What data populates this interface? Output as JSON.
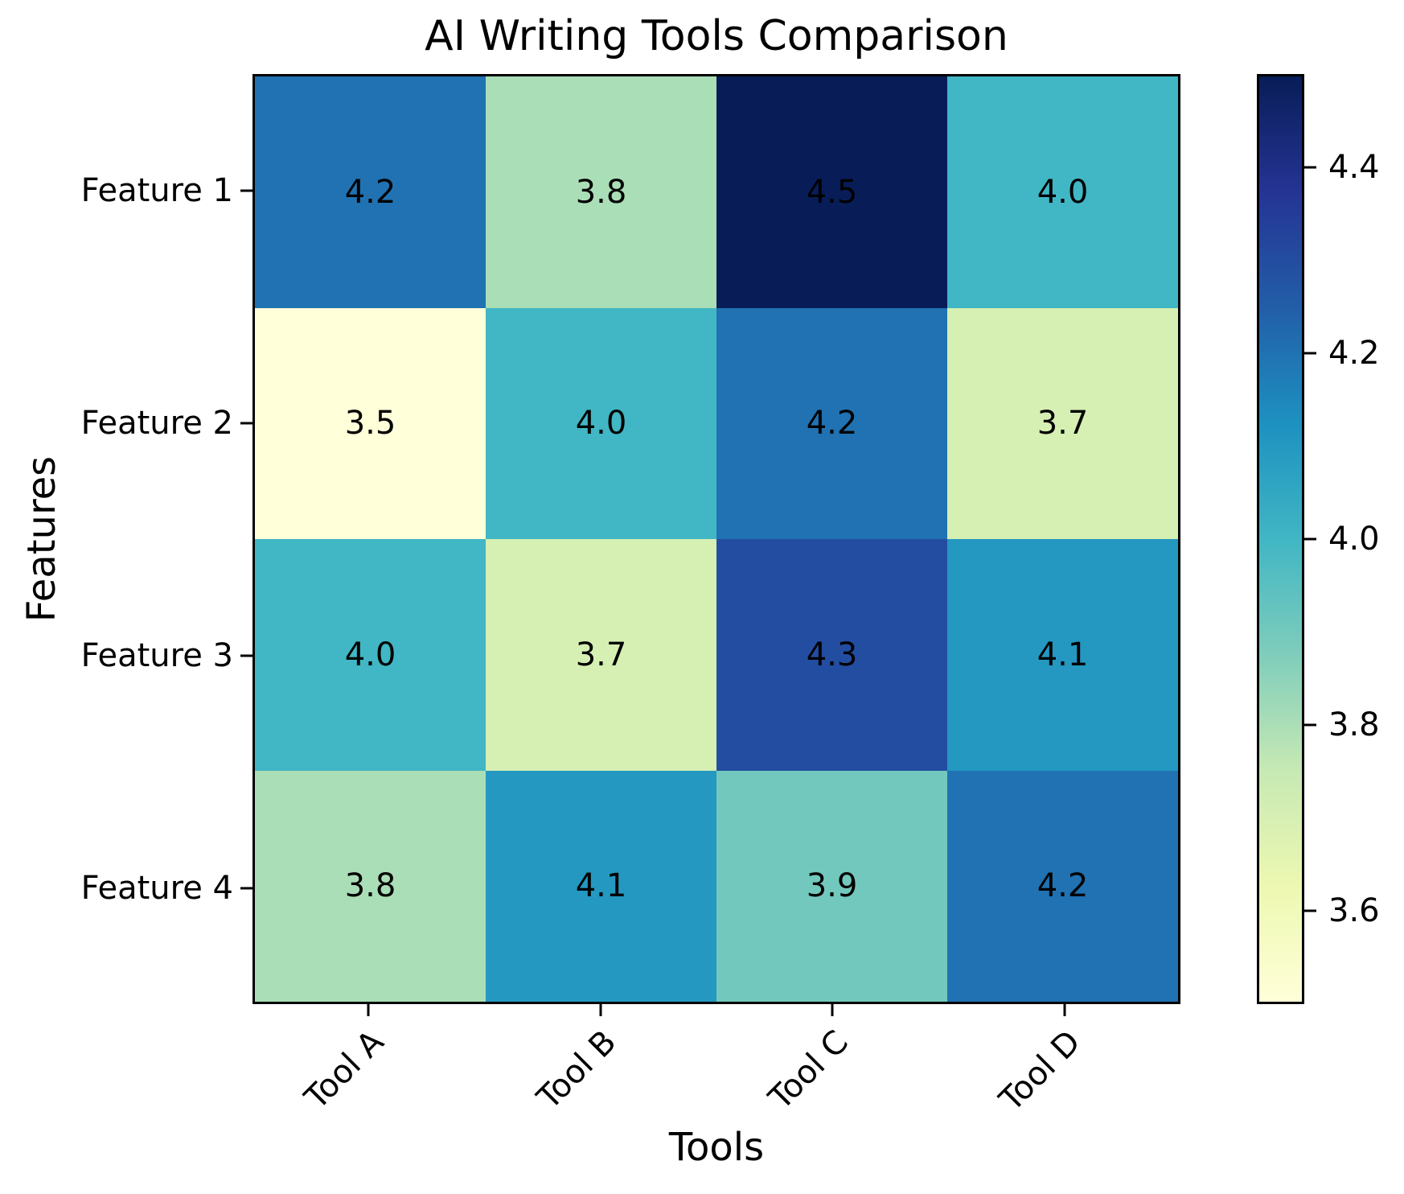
{
  "chart_data": {
    "type": "heatmap",
    "title": "AI Writing Tools Comparison",
    "xlabel": "Tools",
    "ylabel": "Features",
    "columns": [
      "Tool A",
      "Tool B",
      "Tool C",
      "Tool D"
    ],
    "rows": [
      "Feature 1",
      "Feature 2",
      "Feature 3",
      "Feature 4"
    ],
    "values": [
      [
        4.2,
        3.8,
        4.5,
        4.0
      ],
      [
        3.5,
        4.0,
        4.2,
        3.7
      ],
      [
        4.0,
        3.7,
        4.3,
        4.1
      ],
      [
        3.8,
        4.1,
        3.9,
        4.2
      ]
    ],
    "value_format_decimals": 1,
    "vmin": 3.5,
    "vmax": 4.5,
    "annotation_color": "#000000",
    "colorbar": {
      "ticks": [
        "4.4",
        "4.2",
        "4.0",
        "3.8",
        "3.6"
      ],
      "tick_values": [
        4.4,
        4.2,
        4.0,
        3.8,
        3.6
      ]
    },
    "colormap": {
      "name": "YlGnBu",
      "stops": [
        "#ffffd9",
        "#edf8b1",
        "#c7e9b4",
        "#7fcdbb",
        "#41b6c4",
        "#1d91c0",
        "#225ea8",
        "#253494",
        "#081d58"
      ]
    },
    "layout": {
      "grid": false,
      "legend": false,
      "colorbar_position": "right",
      "x_tick_rotation_deg": 45
    }
  }
}
